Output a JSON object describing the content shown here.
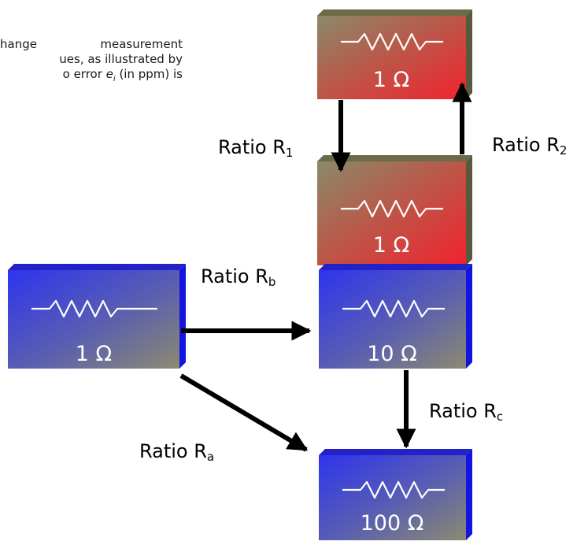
{
  "intro": {
    "line1": "hange measurement",
    "line2": "ues, as illustrated by",
    "line3_a": "o error ",
    "line3_e": "e",
    "line3_sub": "i",
    "line3_b": " (in ppm) is"
  },
  "resistors": {
    "top": "1 Ω",
    "middle": "1 Ω",
    "left": "1 Ω",
    "ten": "10 Ω",
    "hundred": "100 Ω"
  },
  "ratios": {
    "r1": {
      "main": "Ratio R",
      "sub": "1"
    },
    "r2": {
      "main": "Ratio R",
      "sub": "2"
    },
    "rb": {
      "main": "Ratio R",
      "sub": "b"
    },
    "rc": {
      "main": "Ratio R",
      "sub": "c"
    },
    "ra": {
      "main": "Ratio R",
      "sub": "a"
    }
  },
  "colors": {
    "red_box": "#e8343a",
    "blue_box": "#3a3ee8",
    "box_base": "#8a8a6a",
    "arrow": "#000000"
  }
}
